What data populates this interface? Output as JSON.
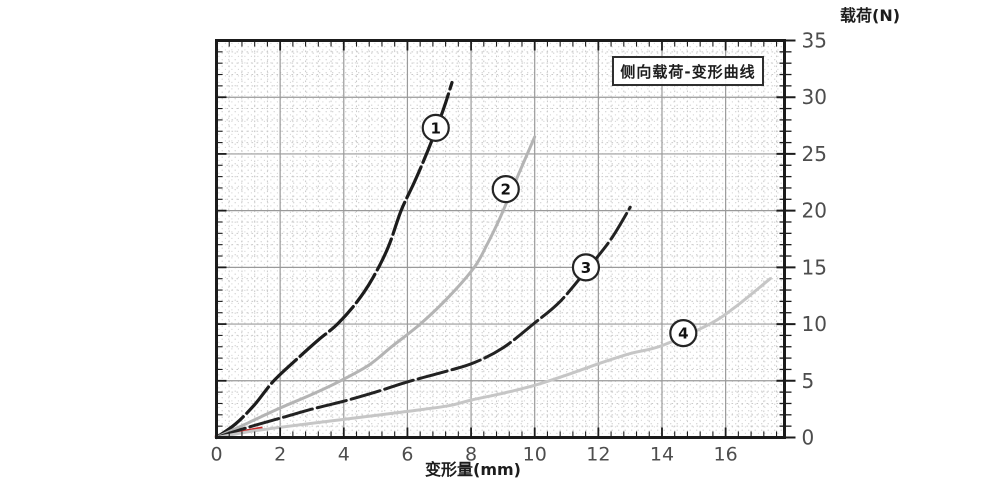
{
  "chart_data": {
    "type": "line",
    "title": "侧向载荷-变形曲线",
    "xlabel": "变形量(mm)",
    "ylabel": "载荷(N)",
    "xlim": [
      0,
      17.85
    ],
    "ylim": [
      0,
      35
    ],
    "x_major_ticks": [
      0,
      2,
      4,
      6,
      8,
      10,
      12,
      14,
      16
    ],
    "x_minor_step": 0.4,
    "y_major_ticks": [
      0,
      5,
      10,
      15,
      20,
      25,
      30,
      35
    ],
    "y_minor_step": 1,
    "grid": "major lines + dotted minor grid (stippled scan texture)",
    "legend_position": "none (curves numbered with circled labels on-curve)",
    "series": [
      {
        "name": "curve-1",
        "label": "1",
        "color": "#1c1c1c",
        "width": 3.2,
        "dash": "34 5",
        "label_pos": {
          "x": 6.89,
          "y": 27.3
        },
        "points": [
          [
            0,
            0
          ],
          [
            0.6,
            1.2
          ],
          [
            1.2,
            2.9
          ],
          [
            1.8,
            5
          ],
          [
            2.6,
            7.1
          ],
          [
            3.2,
            8.6
          ],
          [
            3.8,
            10
          ],
          [
            4.4,
            11.9
          ],
          [
            4.9,
            14
          ],
          [
            5.4,
            16.8
          ],
          [
            5.8,
            20
          ],
          [
            6.2,
            22.4
          ],
          [
            6.6,
            25
          ],
          [
            7.0,
            27.9
          ],
          [
            7.2,
            29.5
          ],
          [
            7.4,
            31.3
          ]
        ]
      },
      {
        "name": "curve-2",
        "label": "2",
        "color": "#b4b4b4",
        "width": 3.0,
        "dash": "",
        "label_pos": {
          "x": 9.09,
          "y": 21.9
        },
        "points": [
          [
            0,
            0
          ],
          [
            1,
            1.3
          ],
          [
            2,
            2.6
          ],
          [
            3,
            3.8
          ],
          [
            3.9,
            5
          ],
          [
            4.8,
            6.4
          ],
          [
            5.5,
            8
          ],
          [
            6.4,
            10
          ],
          [
            7.3,
            12.4
          ],
          [
            8.1,
            15
          ],
          [
            8.5,
            17
          ],
          [
            8.9,
            19.3
          ],
          [
            9.4,
            22.6
          ],
          [
            10,
            26.5
          ]
        ]
      },
      {
        "name": "curve-3",
        "label": "3",
        "color": "#222222",
        "width": 3.0,
        "dash": "30 5",
        "label_pos": {
          "x": 11.61,
          "y": 15.0
        },
        "points": [
          [
            0,
            0
          ],
          [
            1,
            0.9
          ],
          [
            2,
            1.7
          ],
          [
            3,
            2.5
          ],
          [
            4,
            3.2
          ],
          [
            5,
            4.0
          ],
          [
            6,
            4.9
          ],
          [
            7.3,
            5.9
          ],
          [
            8.1,
            6.6
          ],
          [
            9,
            7.9
          ],
          [
            10,
            10.1
          ],
          [
            10.8,
            12
          ],
          [
            11.7,
            15
          ],
          [
            12.4,
            17.5
          ],
          [
            13,
            20.3
          ]
        ]
      },
      {
        "name": "curve-4",
        "label": "4",
        "color": "#c6c6c6",
        "width": 3.0,
        "dash": "",
        "label_pos": {
          "x": 14.67,
          "y": 9.2
        },
        "points": [
          [
            0,
            0
          ],
          [
            1,
            0.5
          ],
          [
            2,
            0.9
          ],
          [
            4,
            1.6
          ],
          [
            6,
            2.3
          ],
          [
            7.3,
            2.8
          ],
          [
            8,
            3.3
          ],
          [
            9,
            3.9
          ],
          [
            10,
            4.6
          ],
          [
            11,
            5.5
          ],
          [
            12,
            6.5
          ],
          [
            13,
            7.4
          ],
          [
            14,
            8.1
          ],
          [
            15.5,
            10
          ],
          [
            16.3,
            11.5
          ],
          [
            17.4,
            14
          ]
        ]
      }
    ],
    "annotations": {
      "red_segment": {
        "name": "red-origin-segment",
        "color": "#c62a2a",
        "width": 3.5,
        "points": [
          [
            0,
            0.1
          ],
          [
            1.4,
            0.8
          ]
        ]
      }
    }
  },
  "colors": {
    "frame": "#1b1b1b",
    "grid_major": "#9a9a9a",
    "grid_minor": "#c9c9c9",
    "stipple_dot": "#d4d4d4",
    "tick_label": "#4d4d4d",
    "label_circle_stroke": "#242424",
    "label_circle_fill": "#ffffff"
  }
}
